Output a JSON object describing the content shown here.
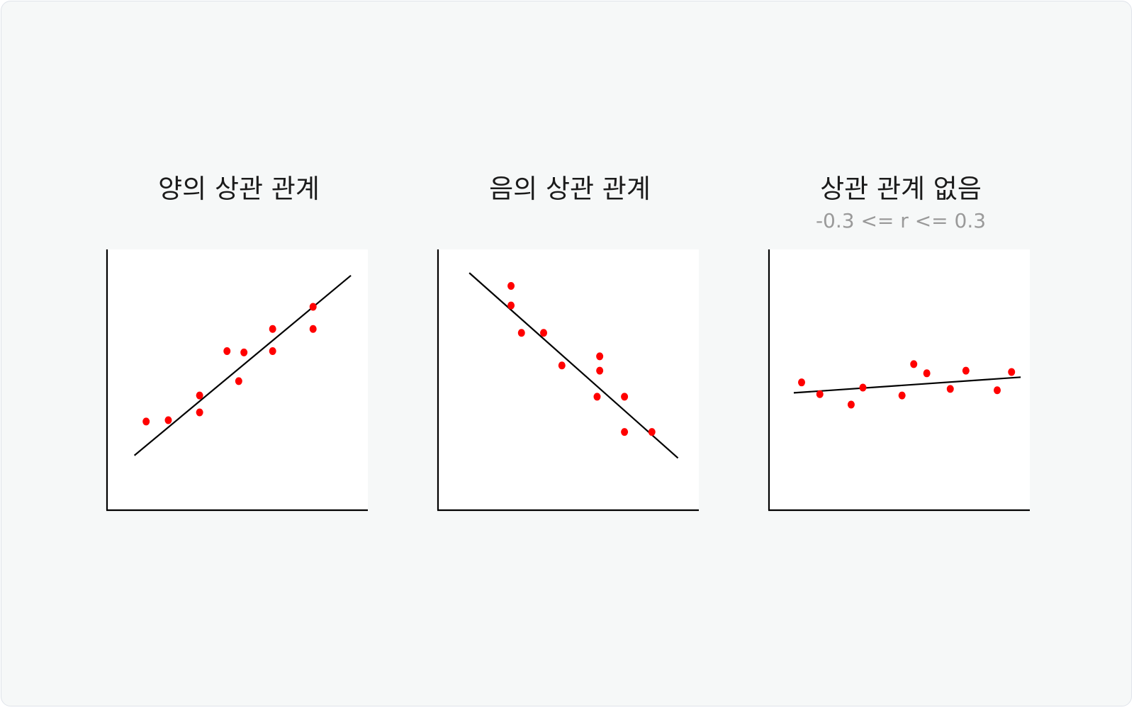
{
  "chart_data": [
    {
      "type": "scatter",
      "title": "양의 상관 관계",
      "subtitle": "",
      "xlim": [
        0,
        10
      ],
      "ylim": [
        0,
        10
      ],
      "grid": false,
      "points_color": "#ff0000",
      "line_color": "#000000",
      "points": [
        {
          "x": 1.5,
          "y": 3.4
        },
        {
          "x": 2.35,
          "y": 3.45
        },
        {
          "x": 3.55,
          "y": 4.4
        },
        {
          "x": 3.55,
          "y": 3.75
        },
        {
          "x": 4.6,
          "y": 6.1
        },
        {
          "x": 5.05,
          "y": 4.95
        },
        {
          "x": 5.25,
          "y": 6.05
        },
        {
          "x": 6.35,
          "y": 6.95
        },
        {
          "x": 6.35,
          "y": 6.1
        },
        {
          "x": 7.9,
          "y": 7.8
        },
        {
          "x": 7.9,
          "y": 6.95
        }
      ],
      "trend_line": {
        "x": [
          1.05,
          9.35
        ],
        "y": [
          2.1,
          9.0
        ]
      }
    },
    {
      "type": "scatter",
      "title": "음의 상관 관계",
      "subtitle": "",
      "xlim": [
        0,
        10
      ],
      "ylim": [
        0,
        10
      ],
      "grid": false,
      "points_color": "#ff0000",
      "line_color": "#000000",
      "points": [
        {
          "x": 2.8,
          "y": 8.6
        },
        {
          "x": 2.8,
          "y": 7.85
        },
        {
          "x": 3.2,
          "y": 6.8
        },
        {
          "x": 4.05,
          "y": 6.8
        },
        {
          "x": 4.75,
          "y": 5.55
        },
        {
          "x": 6.2,
          "y": 5.9
        },
        {
          "x": 6.2,
          "y": 5.35
        },
        {
          "x": 6.1,
          "y": 4.35
        },
        {
          "x": 7.15,
          "y": 4.35
        },
        {
          "x": 7.15,
          "y": 3.0
        },
        {
          "x": 8.2,
          "y": 3.0
        }
      ],
      "trend_line": {
        "x": [
          1.2,
          9.2
        ],
        "y": [
          9.1,
          2.0
        ]
      }
    },
    {
      "type": "scatter",
      "title": "상관 관계 없음",
      "subtitle": "-0.3 <= r <= 0.3",
      "xlim": [
        0,
        10
      ],
      "ylim": [
        0,
        10
      ],
      "grid": false,
      "points_color": "#ff0000",
      "line_color": "#000000",
      "points": [
        {
          "x": 1.25,
          "y": 4.9
        },
        {
          "x": 1.95,
          "y": 4.45
        },
        {
          "x": 3.15,
          "y": 4.05
        },
        {
          "x": 3.6,
          "y": 4.7
        },
        {
          "x": 5.1,
          "y": 4.4
        },
        {
          "x": 5.55,
          "y": 5.6
        },
        {
          "x": 6.05,
          "y": 5.25
        },
        {
          "x": 6.95,
          "y": 4.65
        },
        {
          "x": 7.55,
          "y": 5.35
        },
        {
          "x": 8.75,
          "y": 4.6
        },
        {
          "x": 9.3,
          "y": 5.3
        }
      ],
      "trend_line": {
        "x": [
          0.95,
          9.65
        ],
        "y": [
          4.5,
          5.1
        ]
      }
    }
  ]
}
